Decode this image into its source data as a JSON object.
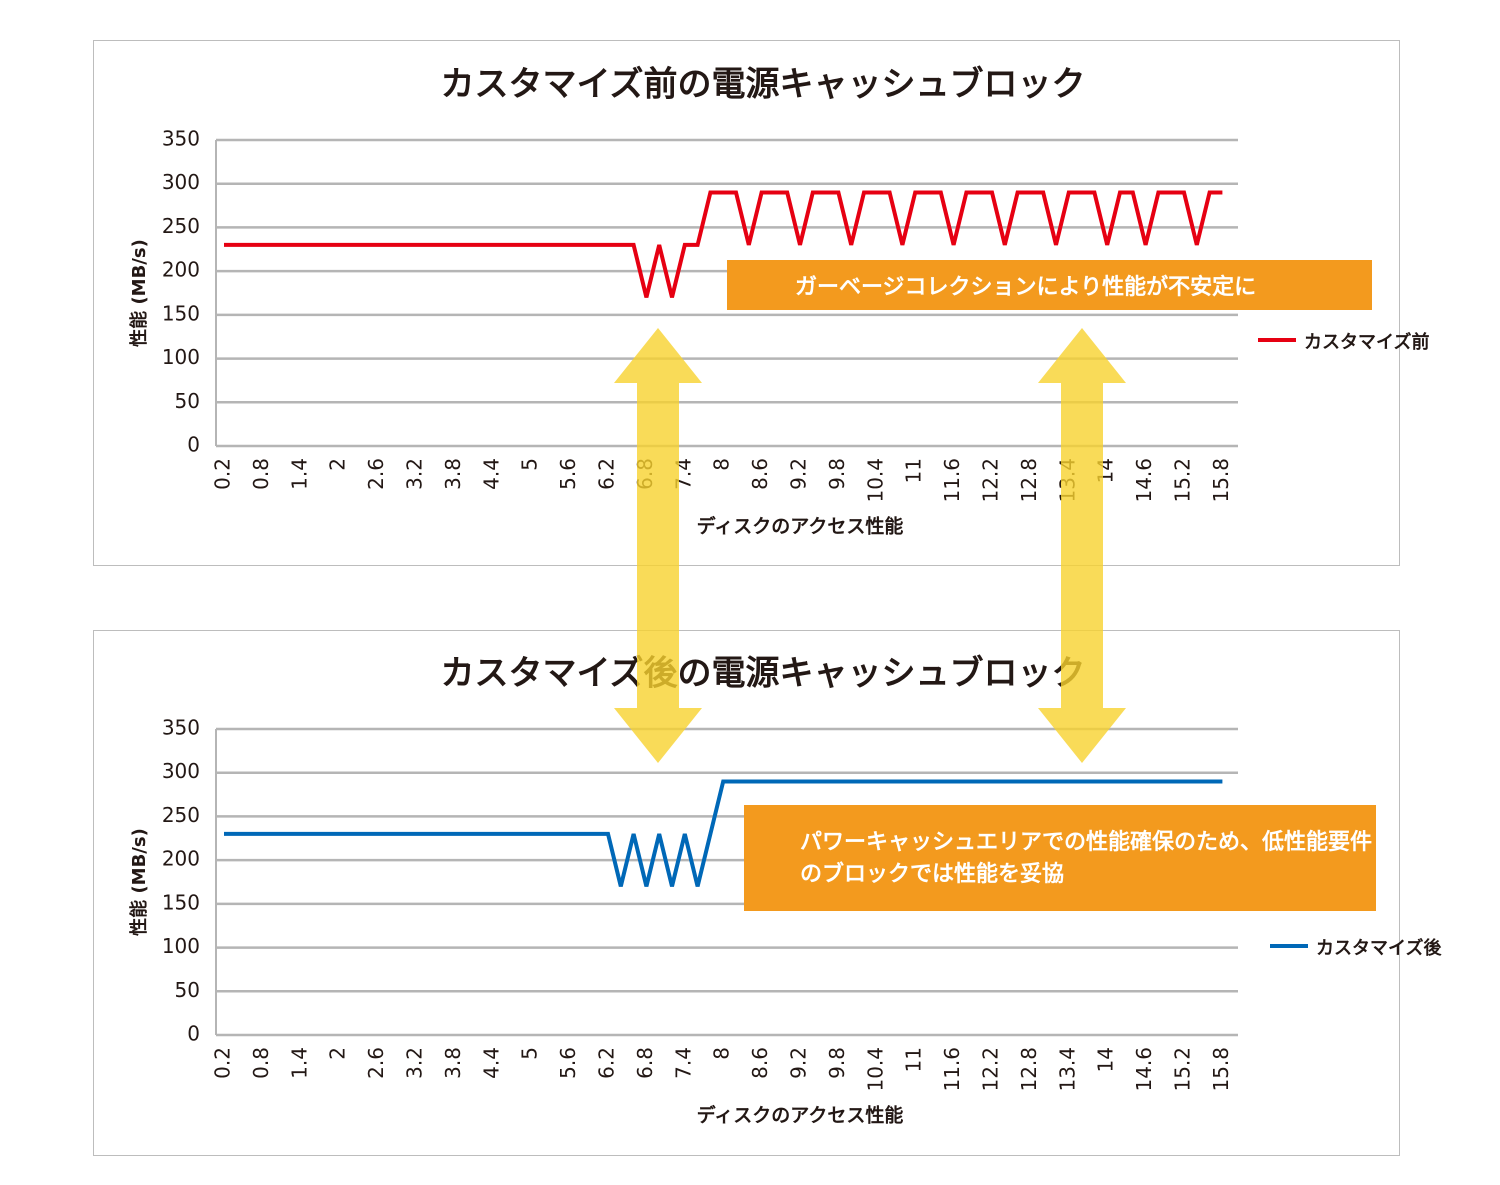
{
  "chart_data": [
    {
      "type": "line",
      "title": "カスタマイズ前の電源キャッシュブロック",
      "x_label": "ディスクのアクセス性能",
      "y_label": "性能 (MB/s)",
      "categories": [
        "0.2",
        null,
        null,
        "0.8",
        null,
        null,
        "1.4",
        null,
        null,
        "2",
        null,
        null,
        "2.6",
        null,
        null,
        "3.2",
        null,
        null,
        "3.8",
        null,
        null,
        "4.4",
        null,
        null,
        "5",
        null,
        null,
        "5.6",
        null,
        null,
        "6.2",
        null,
        null,
        "6.8",
        null,
        null,
        "7.4",
        null,
        null,
        "8",
        null,
        null,
        "8.6",
        null,
        null,
        "9.2",
        null,
        null,
        "9.8",
        null,
        null,
        "10.4",
        null,
        null,
        "11",
        null,
        null,
        "11.6",
        null,
        null,
        "12.2",
        null,
        null,
        "12.8",
        null,
        null,
        "13.4",
        null,
        null,
        "14",
        null,
        null,
        "14.6",
        null,
        null,
        "15.2",
        null,
        null,
        "15.8"
      ],
      "series": [
        {
          "name": "カスタマイズ前",
          "color": "#e60012",
          "values": [
            230,
            230,
            230,
            230,
            230,
            230,
            230,
            230,
            230,
            230,
            230,
            230,
            230,
            230,
            230,
            230,
            230,
            230,
            230,
            230,
            230,
            230,
            230,
            230,
            230,
            230,
            230,
            230,
            230,
            230,
            230,
            230,
            230,
            170,
            230,
            170,
            230,
            230,
            290,
            290,
            290,
            230,
            290,
            290,
            290,
            230,
            290,
            290,
            290,
            230,
            290,
            290,
            290,
            230,
            290,
            290,
            290,
            230,
            290,
            290,
            290,
            230,
            290,
            290,
            290,
            230,
            290,
            290,
            290,
            230,
            290,
            290,
            230,
            290,
            290,
            290,
            230,
            290,
            290
          ]
        }
      ],
      "ylim": [
        0,
        350
      ],
      "yticks": [
        0,
        50,
        100,
        150,
        200,
        250,
        300,
        350
      ],
      "grid": true,
      "annotation": "ガーベージコレクションにより性能が不安定に"
    },
    {
      "type": "line",
      "title": "カスタマイズ後の電源キャッシュブロック",
      "x_label": "ディスクのアクセス性能",
      "y_label": "性能 (MB/s)",
      "categories": [
        "0.2",
        null,
        null,
        "0.8",
        null,
        null,
        "1.4",
        null,
        null,
        "2",
        null,
        null,
        "2.6",
        null,
        null,
        "3.2",
        null,
        null,
        "3.8",
        null,
        null,
        "4.4",
        null,
        null,
        "5",
        null,
        null,
        "5.6",
        null,
        null,
        "6.2",
        null,
        null,
        "6.8",
        null,
        null,
        "7.4",
        null,
        null,
        "8",
        null,
        null,
        "8.6",
        null,
        null,
        "9.2",
        null,
        null,
        "9.8",
        null,
        null,
        "10.4",
        null,
        null,
        "11",
        null,
        null,
        "11.6",
        null,
        null,
        "12.2",
        null,
        null,
        "12.8",
        null,
        null,
        "13.4",
        null,
        null,
        "14",
        null,
        null,
        "14.6",
        null,
        null,
        "15.2",
        null,
        null,
        "15.8"
      ],
      "series": [
        {
          "name": "カスタマイズ後",
          "color": "#0068b7",
          "values": [
            230,
            230,
            230,
            230,
            230,
            230,
            230,
            230,
            230,
            230,
            230,
            230,
            230,
            230,
            230,
            230,
            230,
            230,
            230,
            230,
            230,
            230,
            230,
            230,
            230,
            230,
            230,
            230,
            230,
            230,
            230,
            170,
            230,
            170,
            230,
            170,
            230,
            170,
            230,
            290,
            290,
            290,
            290,
            290,
            290,
            290,
            290,
            290,
            290,
            290,
            290,
            290,
            290,
            290,
            290,
            290,
            290,
            290,
            290,
            290,
            290,
            290,
            290,
            290,
            290,
            290,
            290,
            290,
            290,
            290,
            290,
            290,
            290,
            290,
            290,
            290,
            290,
            290,
            290
          ]
        }
      ],
      "ylim": [
        0,
        350
      ],
      "yticks": [
        0,
        50,
        100,
        150,
        200,
        250,
        300,
        350
      ],
      "grid": true,
      "annotation": "パワーキャッシュエリアでの性能確保のため、低性能要件のブロックでは性能を妥協"
    }
  ]
}
